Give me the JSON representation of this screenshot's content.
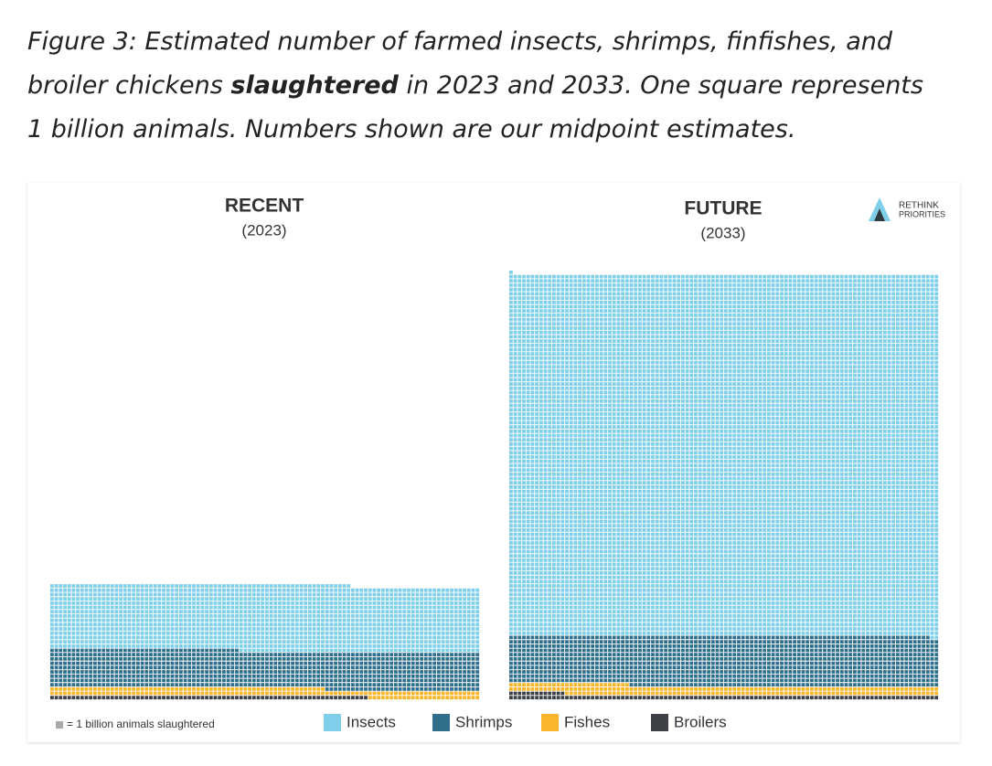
{
  "chart_data": {
    "type": "waffle",
    "caption_before": "Figure 3: Estimated number of farmed insects, shrimps, finfishes, and broiler chickens",
    "caption_bold": "slaughtered",
    "caption_after": "in 2023 and 2033. One square represents 1 billion animals. Numbers shown are our midpoint estimates.",
    "logo": [
      "RETHINK",
      "PRIORITIES"
    ],
    "unit_note": "= 1 billion animals slaughtered",
    "series": [
      {
        "name": "Insects",
        "color": "#7fcfea"
      },
      {
        "name": "Shrimps",
        "color": "#2f6f8c"
      },
      {
        "name": "Fishes",
        "color": "#f9b52b"
      },
      {
        "name": "Broilers",
        "color": "#3d4044"
      }
    ],
    "panels": [
      {
        "title": "RECENT",
        "subtitle": "(2023)",
        "values": [
          1526,
          880,
          190,
          74
        ]
      },
      {
        "title": "FUTURE",
        "subtitle": "(2033)",
        "values": [
          8403,
          1170,
          215,
          113
        ]
      }
    ]
  }
}
